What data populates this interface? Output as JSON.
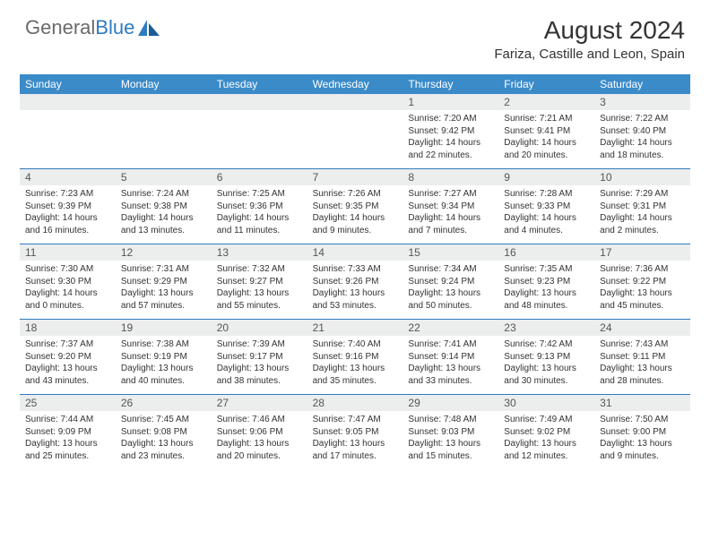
{
  "logo": {
    "text1": "General",
    "text2": "Blue"
  },
  "title": "August 2024",
  "location": "Fariza, Castille and Leon, Spain",
  "colors": {
    "header_bg": "#3b8bc9",
    "header_text": "#ffffff",
    "daynum_bg": "#eceded",
    "border": "#2f7bc0",
    "body_text": "#333333",
    "logo_gray": "#6a6a6a",
    "logo_blue": "#2f7bc0"
  },
  "weekdays": [
    "Sunday",
    "Monday",
    "Tuesday",
    "Wednesday",
    "Thursday",
    "Friday",
    "Saturday"
  ],
  "weeks": [
    [
      {
        "n": "",
        "sunrise": "",
        "sunset": "",
        "daylight": ""
      },
      {
        "n": "",
        "sunrise": "",
        "sunset": "",
        "daylight": ""
      },
      {
        "n": "",
        "sunrise": "",
        "sunset": "",
        "daylight": ""
      },
      {
        "n": "",
        "sunrise": "",
        "sunset": "",
        "daylight": ""
      },
      {
        "n": "1",
        "sunrise": "Sunrise: 7:20 AM",
        "sunset": "Sunset: 9:42 PM",
        "daylight": "Daylight: 14 hours and 22 minutes."
      },
      {
        "n": "2",
        "sunrise": "Sunrise: 7:21 AM",
        "sunset": "Sunset: 9:41 PM",
        "daylight": "Daylight: 14 hours and 20 minutes."
      },
      {
        "n": "3",
        "sunrise": "Sunrise: 7:22 AM",
        "sunset": "Sunset: 9:40 PM",
        "daylight": "Daylight: 14 hours and 18 minutes."
      }
    ],
    [
      {
        "n": "4",
        "sunrise": "Sunrise: 7:23 AM",
        "sunset": "Sunset: 9:39 PM",
        "daylight": "Daylight: 14 hours and 16 minutes."
      },
      {
        "n": "5",
        "sunrise": "Sunrise: 7:24 AM",
        "sunset": "Sunset: 9:38 PM",
        "daylight": "Daylight: 14 hours and 13 minutes."
      },
      {
        "n": "6",
        "sunrise": "Sunrise: 7:25 AM",
        "sunset": "Sunset: 9:36 PM",
        "daylight": "Daylight: 14 hours and 11 minutes."
      },
      {
        "n": "7",
        "sunrise": "Sunrise: 7:26 AM",
        "sunset": "Sunset: 9:35 PM",
        "daylight": "Daylight: 14 hours and 9 minutes."
      },
      {
        "n": "8",
        "sunrise": "Sunrise: 7:27 AM",
        "sunset": "Sunset: 9:34 PM",
        "daylight": "Daylight: 14 hours and 7 minutes."
      },
      {
        "n": "9",
        "sunrise": "Sunrise: 7:28 AM",
        "sunset": "Sunset: 9:33 PM",
        "daylight": "Daylight: 14 hours and 4 minutes."
      },
      {
        "n": "10",
        "sunrise": "Sunrise: 7:29 AM",
        "sunset": "Sunset: 9:31 PM",
        "daylight": "Daylight: 14 hours and 2 minutes."
      }
    ],
    [
      {
        "n": "11",
        "sunrise": "Sunrise: 7:30 AM",
        "sunset": "Sunset: 9:30 PM",
        "daylight": "Daylight: 14 hours and 0 minutes."
      },
      {
        "n": "12",
        "sunrise": "Sunrise: 7:31 AM",
        "sunset": "Sunset: 9:29 PM",
        "daylight": "Daylight: 13 hours and 57 minutes."
      },
      {
        "n": "13",
        "sunrise": "Sunrise: 7:32 AM",
        "sunset": "Sunset: 9:27 PM",
        "daylight": "Daylight: 13 hours and 55 minutes."
      },
      {
        "n": "14",
        "sunrise": "Sunrise: 7:33 AM",
        "sunset": "Sunset: 9:26 PM",
        "daylight": "Daylight: 13 hours and 53 minutes."
      },
      {
        "n": "15",
        "sunrise": "Sunrise: 7:34 AM",
        "sunset": "Sunset: 9:24 PM",
        "daylight": "Daylight: 13 hours and 50 minutes."
      },
      {
        "n": "16",
        "sunrise": "Sunrise: 7:35 AM",
        "sunset": "Sunset: 9:23 PM",
        "daylight": "Daylight: 13 hours and 48 minutes."
      },
      {
        "n": "17",
        "sunrise": "Sunrise: 7:36 AM",
        "sunset": "Sunset: 9:22 PM",
        "daylight": "Daylight: 13 hours and 45 minutes."
      }
    ],
    [
      {
        "n": "18",
        "sunrise": "Sunrise: 7:37 AM",
        "sunset": "Sunset: 9:20 PM",
        "daylight": "Daylight: 13 hours and 43 minutes."
      },
      {
        "n": "19",
        "sunrise": "Sunrise: 7:38 AM",
        "sunset": "Sunset: 9:19 PM",
        "daylight": "Daylight: 13 hours and 40 minutes."
      },
      {
        "n": "20",
        "sunrise": "Sunrise: 7:39 AM",
        "sunset": "Sunset: 9:17 PM",
        "daylight": "Daylight: 13 hours and 38 minutes."
      },
      {
        "n": "21",
        "sunrise": "Sunrise: 7:40 AM",
        "sunset": "Sunset: 9:16 PM",
        "daylight": "Daylight: 13 hours and 35 minutes."
      },
      {
        "n": "22",
        "sunrise": "Sunrise: 7:41 AM",
        "sunset": "Sunset: 9:14 PM",
        "daylight": "Daylight: 13 hours and 33 minutes."
      },
      {
        "n": "23",
        "sunrise": "Sunrise: 7:42 AM",
        "sunset": "Sunset: 9:13 PM",
        "daylight": "Daylight: 13 hours and 30 minutes."
      },
      {
        "n": "24",
        "sunrise": "Sunrise: 7:43 AM",
        "sunset": "Sunset: 9:11 PM",
        "daylight": "Daylight: 13 hours and 28 minutes."
      }
    ],
    [
      {
        "n": "25",
        "sunrise": "Sunrise: 7:44 AM",
        "sunset": "Sunset: 9:09 PM",
        "daylight": "Daylight: 13 hours and 25 minutes."
      },
      {
        "n": "26",
        "sunrise": "Sunrise: 7:45 AM",
        "sunset": "Sunset: 9:08 PM",
        "daylight": "Daylight: 13 hours and 23 minutes."
      },
      {
        "n": "27",
        "sunrise": "Sunrise: 7:46 AM",
        "sunset": "Sunset: 9:06 PM",
        "daylight": "Daylight: 13 hours and 20 minutes."
      },
      {
        "n": "28",
        "sunrise": "Sunrise: 7:47 AM",
        "sunset": "Sunset: 9:05 PM",
        "daylight": "Daylight: 13 hours and 17 minutes."
      },
      {
        "n": "29",
        "sunrise": "Sunrise: 7:48 AM",
        "sunset": "Sunset: 9:03 PM",
        "daylight": "Daylight: 13 hours and 15 minutes."
      },
      {
        "n": "30",
        "sunrise": "Sunrise: 7:49 AM",
        "sunset": "Sunset: 9:02 PM",
        "daylight": "Daylight: 13 hours and 12 minutes."
      },
      {
        "n": "31",
        "sunrise": "Sunrise: 7:50 AM",
        "sunset": "Sunset: 9:00 PM",
        "daylight": "Daylight: 13 hours and 9 minutes."
      }
    ]
  ]
}
